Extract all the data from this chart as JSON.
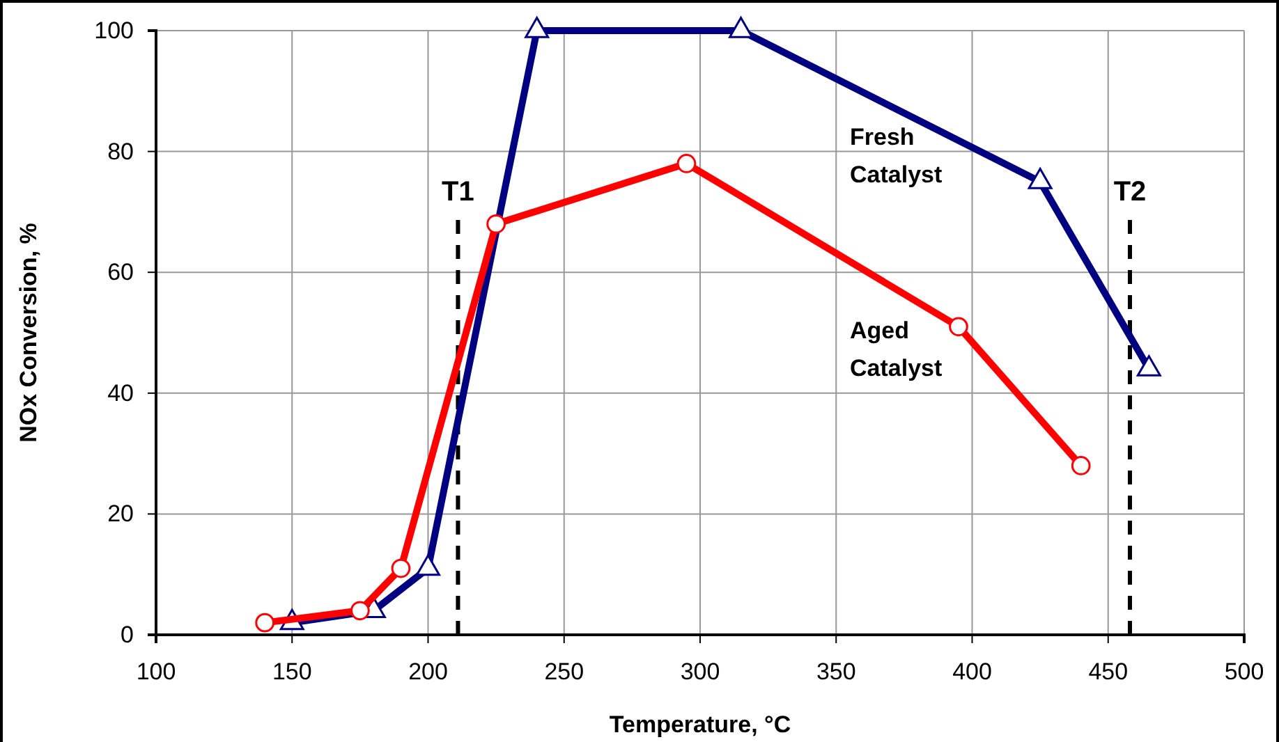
{
  "chart_data": {
    "type": "line",
    "xlabel": "Temperature, °C",
    "ylabel": "NOx Conversion, %",
    "xlim": [
      100,
      500
    ],
    "xticks": [
      100,
      150,
      200,
      250,
      300,
      350,
      400,
      450,
      500
    ],
    "ylim": [
      0,
      100
    ],
    "yticks": [
      0,
      20,
      40,
      60,
      80,
      100
    ],
    "grid": true,
    "series": [
      {
        "name": "Fresh Catalyst",
        "color": "#000080",
        "marker": "triangle",
        "x": [
          150,
          180,
          200,
          240,
          315,
          425,
          465
        ],
        "values": [
          2,
          4,
          11,
          100,
          100,
          75,
          44
        ]
      },
      {
        "name": "Aged Catalyst",
        "color": "#ff0000",
        "marker": "circle",
        "x": [
          140,
          175,
          190,
          225,
          295,
          395,
          440
        ],
        "values": [
          2,
          4,
          11,
          68,
          78,
          51,
          28
        ]
      }
    ],
    "ref_lines": [
      {
        "axis": "x",
        "value": 211,
        "label": "T1",
        "color": "#000000",
        "line_style": "dashed"
      },
      {
        "axis": "x",
        "value": 458,
        "label": "T2",
        "color": "#000000",
        "line_style": "dashed"
      }
    ]
  }
}
